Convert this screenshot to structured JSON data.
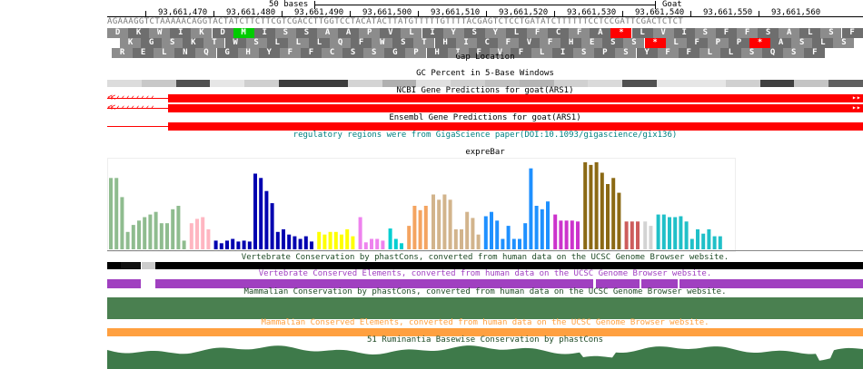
{
  "scale": {
    "label": "50 bases",
    "assembly": "Goat"
  },
  "ruler": [
    "93,661,470",
    "93,661,480",
    "93,661,490",
    "93,661,500",
    "93,661,510",
    "93,661,520",
    "93,661,530",
    "93,661,540",
    "93,661,550",
    "93,661,560"
  ],
  "sequence": "AGAAAGGTCTAAAAACAGGTACTATCTTCTTCGTCGACCTTGGTCCTACATACTTATGTTTTTGTTTTACGAGTCTCCTGATATCTTTTTTCCTCCGATTCGACTCTCT",
  "frames": [
    [
      "D",
      "K",
      "W",
      "I",
      "K",
      "D",
      "M",
      "I",
      "S",
      "S",
      "A",
      "A",
      "P",
      "V",
      "L",
      "I",
      "Y",
      "S",
      "Y",
      "L",
      "F",
      "C",
      "F",
      "A",
      "*",
      "L",
      "V",
      "I",
      "S",
      "F",
      "F",
      "S",
      "A",
      "L",
      "S",
      "F"
    ],
    [
      "K",
      "G",
      "S",
      "K",
      "T",
      "W",
      "S",
      "L",
      "L",
      "L",
      "Q",
      "F",
      "W",
      "S",
      "T",
      "H",
      "I",
      "C",
      "F",
      "V",
      "F",
      "H",
      "E",
      "S",
      "S",
      "*",
      "L",
      "F",
      "P",
      "P",
      "*",
      "A",
      "S",
      "L",
      "S"
    ],
    [
      "R",
      "E",
      "L",
      "N",
      "Q",
      "G",
      "H",
      "Y",
      "F",
      "F",
      "C",
      "S",
      "S",
      "G",
      "P",
      "H",
      "I",
      "F",
      "V",
      "F",
      "L",
      "I",
      "S",
      "P",
      "S",
      "Y",
      "F",
      "F",
      "L",
      "L",
      "S",
      "Q",
      "S",
      "F"
    ]
  ],
  "tracks": {
    "gap": "Gap Location",
    "gc": "GC Percent in 5-Base Windows",
    "ncbi": "NCBI Gene Predictions for goat(ARS1)",
    "ensembl": "Ensembl Gene Predictions for goat(ARS1)",
    "regulatory": "regulatory regions were from GigaScience paper(DOI:10.1093/gigascience/gix136)",
    "expre": "expreBar",
    "vertCons": "Vertebrate Conservation by phastCons, converted from human data on the UCSC Genome Browser website.",
    "vertElem": "Vertebrate Conserved Elements, converted from human data on the UCSC Genome Browser website.",
    "mamCons": "Mammalian Conservation by phastCons, converted from human data on the UCSC Genome Browser website.",
    "mamElem": "Mammalian Conserved Elements, converted from human data on the UCSC Genome Browser website.",
    "rumCons": "51 Ruminantia Basewise Conservation by phastCons"
  },
  "colors": {
    "gene": "#ff0000",
    "regulatory": "#008080",
    "vertElem": "#a040c0",
    "mamElem": "#ffa040",
    "cons": "#3e7a4a",
    "mamCons": "#4a8050",
    "stop": "#ff0000",
    "start": "#00cc00"
  },
  "expreGroups": [
    {
      "color": "#8fbc8f",
      "values": [
        0.82,
        0.82,
        0.6,
        0.2,
        0.28,
        0.33,
        0.37,
        0.4,
        0.43,
        0.3,
        0.3,
        0.46,
        0.5,
        0.1
      ]
    },
    {
      "color": "#ffb6c1",
      "values": [
        0.3,
        0.35,
        0.37,
        0.23
      ]
    },
    {
      "color": "#0000b0",
      "values": [
        0.1,
        0.07,
        0.1,
        0.12,
        0.09,
        0.1,
        0.09,
        0.87,
        0.82,
        0.67,
        0.53,
        0.2,
        0.23,
        0.17,
        0.15,
        0.12,
        0.15,
        0.09
      ]
    },
    {
      "color": "#ffff00",
      "values": [
        0.2,
        0.17,
        0.2,
        0.2,
        0.17,
        0.23,
        0.15
      ]
    },
    {
      "color": "#ee82ee",
      "values": [
        0.37,
        0.08,
        0.12,
        0.12,
        0.1
      ]
    },
    {
      "color": "#00ced1",
      "values": [
        0.24,
        0.12,
        0.07
      ]
    },
    {
      "color": "#f4a460",
      "values": [
        0.27,
        0.5,
        0.45,
        0.5
      ]
    },
    {
      "color": "#d2b48c",
      "values": [
        0.63,
        0.57,
        0.63,
        0.57,
        0.23,
        0.23,
        0.43,
        0.36,
        0.17
      ]
    },
    {
      "color": "#1e90ff",
      "values": [
        0.38,
        0.43,
        0.33,
        0.12,
        0.27,
        0.12,
        0.12,
        0.3,
        0.93,
        0.5,
        0.46,
        0.55
      ]
    },
    {
      "color": "#cc33cc",
      "values": [
        0.4,
        0.33,
        0.33,
        0.33,
        0.32
      ]
    },
    {
      "color": "#8b6914",
      "values": [
        1.0,
        0.97,
        1.0,
        0.88,
        0.75,
        0.82,
        0.65
      ]
    },
    {
      "color": "#cd5c5c",
      "values": [
        0.32,
        0.32,
        0.32
      ]
    },
    {
      "color": "#d3d3d3",
      "values": [
        0.32,
        0.27
      ]
    },
    {
      "color": "#20c0c8",
      "values": [
        0.4,
        0.4,
        0.37,
        0.37,
        0.38,
        0.32,
        0.12,
        0.23,
        0.18,
        0.23,
        0.15,
        0.15
      ]
    }
  ]
}
